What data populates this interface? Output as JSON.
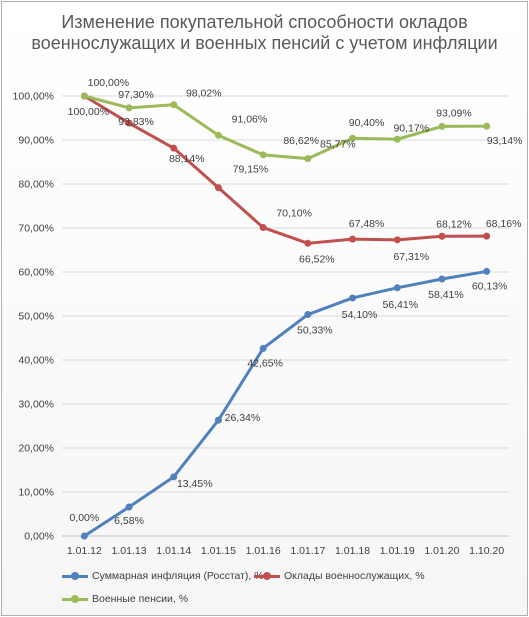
{
  "chart_data": {
    "type": "line",
    "title": "Изменение покупательной способности окладов военнослужащих и военных пенсий с учетом инфляции",
    "categories": [
      "1.01.12",
      "1.01.13",
      "1.01.14",
      "1.01.15",
      "1.01.16",
      "1.01.17",
      "1.01.18",
      "1.01.19",
      "1.01.20",
      "1.10.20"
    ],
    "ylim": [
      0,
      100
    ],
    "yticks": [
      "0,00%",
      "10,00%",
      "20,00%",
      "30,00%",
      "40,00%",
      "50,00%",
      "60,00%",
      "70,00%",
      "80,00%",
      "90,00%",
      "100,00%"
    ],
    "grid": true,
    "legend_position": "bottom",
    "series": [
      {
        "name": "Суммарная инфляция (Росстат), %",
        "color": "#4f81bd",
        "values": [
          0.0,
          6.58,
          13.45,
          26.34,
          42.65,
          50.33,
          54.1,
          56.41,
          58.41,
          60.13
        ],
        "labels": [
          "0,00%",
          "6,58%",
          "13,45%",
          "26,34%",
          "42,65%",
          "50,33%",
          "54,10%",
          "56,41%",
          "58,41%",
          "60,13%"
        ]
      },
      {
        "name": "Оклады военнослужащих, %",
        "color": "#c0504d",
        "values": [
          100.0,
          93.83,
          88.14,
          79.15,
          70.1,
          66.52,
          67.48,
          67.31,
          68.12,
          68.16
        ],
        "labels": [
          "100,00%",
          "93,83%",
          "88,14%",
          "79,15%",
          "70,10%",
          "66,52%",
          "67,48%",
          "67,31%",
          "68,12%",
          "68,16%"
        ]
      },
      {
        "name": "Военные пенсии, %",
        "color": "#9bbb59",
        "values": [
          100.0,
          97.3,
          98.02,
          91.06,
          86.62,
          85.77,
          90.4,
          90.17,
          93.09,
          93.14
        ],
        "labels": [
          "100,00%",
          "97,30%",
          "98,02%",
          "91,06%",
          "86,62%",
          "85,77%",
          "90,40%",
          "90,17%",
          "93,09%",
          "93,14%"
        ]
      }
    ]
  }
}
